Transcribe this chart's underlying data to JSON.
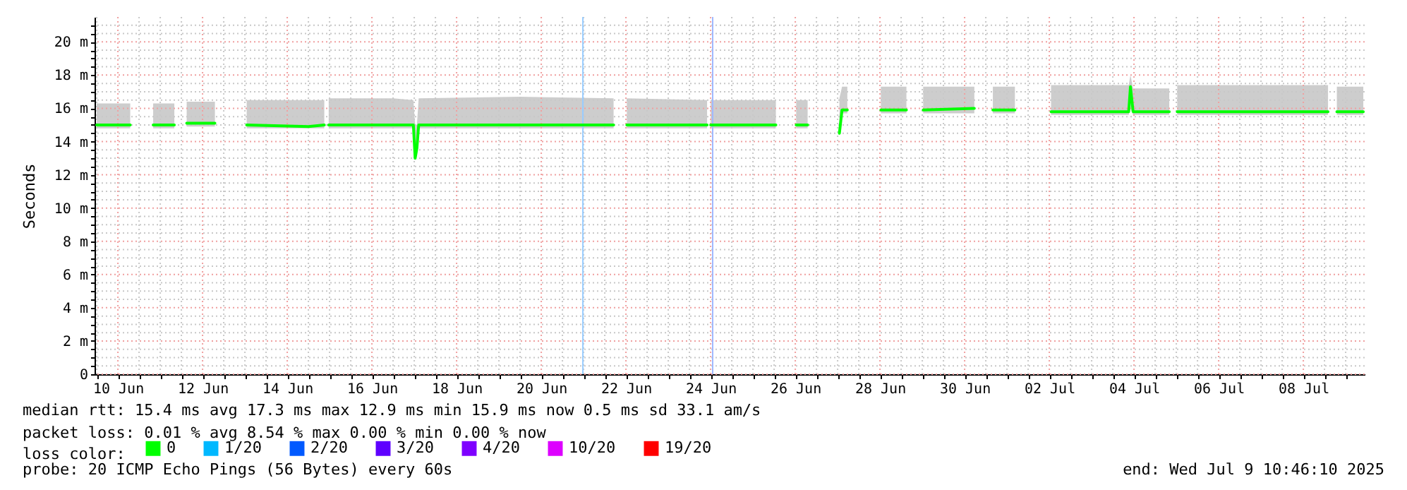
{
  "chart_data": {
    "type": "line",
    "ylabel": "Seconds",
    "legend_title": "loss color:",
    "legend": "bottom",
    "grid": true,
    "marker": "none",
    "line_style": "solid",
    "annotations": [
      "median rtt:  15.4 ms avg  17.3 ms max  12.9 ms min  15.9 ms now  0.5 ms sd  33.1   am/s",
      "packet loss: 0.01 % avg  8.54 % max  0.00 % min  0.00 % now",
      "probe:       20 ICMP Echo Pings (56 Bytes) every 60s",
      "end: Wed Jul  9 10:46:10 2025"
    ],
    "xlim": [
      "2025-06-09T10:46",
      "2025-07-09T10:46"
    ],
    "xticks": [
      {
        "value": "2025-06-09T12:00",
        "label": null
      },
      {
        "value": "2025-06-10",
        "label": "10 Jun"
      },
      {
        "value": "2025-06-10T12:00",
        "label": null
      },
      {
        "value": "2025-06-11",
        "label": null
      },
      {
        "value": "2025-06-11T12:00",
        "label": null
      },
      {
        "value": "2025-06-12",
        "label": "12 Jun"
      },
      {
        "value": "2025-06-12T12:00",
        "label": null
      },
      {
        "value": "2025-06-13",
        "label": null
      },
      {
        "value": "2025-06-13T12:00",
        "label": null
      },
      {
        "value": "2025-06-14",
        "label": "14 Jun"
      },
      {
        "value": "2025-06-14T12:00",
        "label": null
      },
      {
        "value": "2025-06-15",
        "label": null
      },
      {
        "value": "2025-06-15T12:00",
        "label": null
      },
      {
        "value": "2025-06-16",
        "label": "16 Jun"
      },
      {
        "value": "2025-06-16T12:00",
        "label": null
      },
      {
        "value": "2025-06-17",
        "label": null
      },
      {
        "value": "2025-06-17T12:00",
        "label": null
      },
      {
        "value": "2025-06-18",
        "label": "18 Jun"
      },
      {
        "value": "2025-06-18T12:00",
        "label": null
      },
      {
        "value": "2025-06-19",
        "label": null
      },
      {
        "value": "2025-06-19T12:00",
        "label": null
      },
      {
        "value": "2025-06-20",
        "label": "20 Jun"
      },
      {
        "value": "2025-06-20T12:00",
        "label": null
      },
      {
        "value": "2025-06-21",
        "label": null
      },
      {
        "value": "2025-06-21T12:00",
        "label": null
      },
      {
        "value": "2025-06-22",
        "label": "22 Jun"
      },
      {
        "value": "2025-06-22T12:00",
        "label": null
      },
      {
        "value": "2025-06-23",
        "label": null
      },
      {
        "value": "2025-06-23T12:00",
        "label": null
      },
      {
        "value": "2025-06-24",
        "label": "24 Jun"
      },
      {
        "value": "2025-06-24T12:00",
        "label": null
      },
      {
        "value": "2025-06-25",
        "label": null
      },
      {
        "value": "2025-06-25T12:00",
        "label": null
      },
      {
        "value": "2025-06-26",
        "label": "26 Jun"
      },
      {
        "value": "2025-06-26T12:00",
        "label": null
      },
      {
        "value": "2025-06-27",
        "label": null
      },
      {
        "value": "2025-06-27T12:00",
        "label": null
      },
      {
        "value": "2025-06-28",
        "label": "28 Jun"
      },
      {
        "value": "2025-06-28T12:00",
        "label": null
      },
      {
        "value": "2025-06-29",
        "label": null
      },
      {
        "value": "2025-06-29T12:00",
        "label": null
      },
      {
        "value": "2025-06-30",
        "label": "30 Jun"
      },
      {
        "value": "2025-06-30T12:00",
        "label": null
      },
      {
        "value": "2025-07-01",
        "label": null
      },
      {
        "value": "2025-07-01T12:00",
        "label": null
      },
      {
        "value": "2025-07-02",
        "label": "02 Jul"
      },
      {
        "value": "2025-07-02T12:00",
        "label": null
      },
      {
        "value": "2025-07-03",
        "label": null
      },
      {
        "value": "2025-07-03T12:00",
        "label": null
      },
      {
        "value": "2025-07-04",
        "label": "04 Jul"
      },
      {
        "value": "2025-07-04T12:00",
        "label": null
      },
      {
        "value": "2025-07-05",
        "label": null
      },
      {
        "value": "2025-07-05T12:00",
        "label": null
      },
      {
        "value": "2025-07-06",
        "label": "06 Jul"
      },
      {
        "value": "2025-07-06T12:00",
        "label": null
      },
      {
        "value": "2025-07-07",
        "label": null
      },
      {
        "value": "2025-07-07T12:00",
        "label": null
      },
      {
        "value": "2025-07-08",
        "label": "08 Jul"
      },
      {
        "value": "2025-07-08T12:00",
        "label": null
      },
      {
        "value": "2025-07-09",
        "label": null
      }
    ],
    "ylim": [
      0,
      21.5
    ],
    "yticks": [
      0,
      {
        "value": 0.5,
        "label": null
      },
      {
        "value": 1,
        "label": null
      },
      {
        "value": 1.5,
        "label": null
      },
      {
        "value": 2,
        "label": "2 m"
      },
      {
        "value": 2.5,
        "label": null
      },
      {
        "value": 3,
        "label": null
      },
      {
        "value": 3.5,
        "label": null
      },
      {
        "value": 4,
        "label": "4 m"
      },
      {
        "value": 4.5,
        "label": null
      },
      {
        "value": 5,
        "label": null
      },
      {
        "value": 5.5,
        "label": null
      },
      {
        "value": 6,
        "label": "6 m"
      },
      {
        "value": 6.5,
        "label": null
      },
      {
        "value": 7,
        "label": null
      },
      {
        "value": 7.5,
        "label": null
      },
      {
        "value": 8,
        "label": "8 m"
      },
      {
        "value": 8.5,
        "label": null
      },
      {
        "value": 9,
        "label": null
      },
      {
        "value": 9.5,
        "label": null
      },
      {
        "value": 10,
        "label": "10 m"
      },
      {
        "value": 10.5,
        "label": null
      },
      {
        "value": 11,
        "label": null
      },
      {
        "value": 11.5,
        "label": null
      },
      {
        "value": 12,
        "label": "12 m"
      },
      {
        "value": 12.5,
        "label": null
      },
      {
        "value": 13,
        "label": null
      },
      {
        "value": 13.5,
        "label": null
      },
      {
        "value": 14,
        "label": "14 m"
      },
      {
        "value": 14.5,
        "label": null
      },
      {
        "value": 15,
        "label": null
      },
      {
        "value": 15.5,
        "label": null
      },
      {
        "value": 16,
        "label": "16 m"
      },
      {
        "value": 16.5,
        "label": null
      },
      {
        "value": 17,
        "label": null
      },
      {
        "value": 17.5,
        "label": null
      },
      {
        "value": 18,
        "label": "18 m"
      },
      {
        "value": 18.5,
        "label": null
      },
      {
        "value": 19,
        "label": null
      },
      {
        "value": 19.5,
        "label": null
      },
      {
        "value": 20,
        "label": "20 m"
      },
      {
        "value": 20.5,
        "label": null
      },
      {
        "value": 21,
        "label": null
      }
    ],
    "ref_lines": [
      {
        "axis": "x",
        "value": "2025-06-20T23:35",
        "color": "#99ccff"
      },
      {
        "axis": "x",
        "value": "2025-06-24T01:10",
        "color": "#a0b8ff"
      }
    ],
    "x": [
      "2025-06-09T12:00",
      "2025-06-10T07:00",
      "2025-06-10T14:00",
      "2025-06-10T20:00",
      "2025-06-11T08:00",
      "2025-06-11T12:00",
      "2025-06-11T15:00",
      "2025-06-12T07:00",
      "2025-06-12T16:00",
      "2025-06-13T01:00",
      "2025-06-14T12:00",
      "2025-06-14T21:00",
      "2025-06-14T22:00",
      "2025-06-14T23:30",
      "2025-06-16T12:00",
      "2025-06-16T23:30",
      "2025-06-17T00:30",
      "2025-06-17T01:30",
      "2025-06-17T02:30",
      "2025-06-19T12:00",
      "2025-06-21T17:00",
      "2025-06-21T20:00",
      "2025-06-22T00:30",
      "2025-06-23T22:00",
      "2025-06-23T23:00",
      "2025-06-24T00:00",
      "2025-06-25T13:00",
      "2025-06-25T20:00",
      "2025-06-26T00:30",
      "2025-06-26T07:00",
      "2025-06-26T16:00",
      "2025-06-27T01:00",
      "2025-06-27T02:30",
      "2025-06-27T05:30",
      "2025-06-27T14:00",
      "2025-06-28T00:30",
      "2025-06-28T15:00",
      "2025-06-28T20:00",
      "2025-06-29T00:30",
      "2025-06-30T05:30",
      "2025-06-30T10:00",
      "2025-06-30T16:00",
      "2025-07-01T04:30",
      "2025-07-01T12:00",
      "2025-07-02T01:00",
      "2025-07-03T21:00",
      "2025-07-03T22:00",
      "2025-07-03T23:30",
      "2025-07-04T20:00",
      "2025-07-04T22:00",
      "2025-07-05T00:30",
      "2025-07-08T14:00",
      "2025-07-08T17:00",
      "2025-07-08T19:00",
      "2025-07-09T10:00"
    ],
    "series": [
      {
        "name": "0",
        "color": "#00ff00",
        "values": [
          15.0,
          15.0,
          null,
          15.0,
          15.0,
          null,
          15.1,
          15.1,
          null,
          15.0,
          14.9,
          15.0,
          null,
          15.0,
          15.0,
          15.0,
          13.0,
          13.6,
          15.0,
          15.0,
          15.0,
          null,
          15.0,
          15.0,
          null,
          15.0,
          15.0,
          null,
          15.0,
          15.0,
          null,
          14.5,
          15.9,
          15.9,
          null,
          15.9,
          15.9,
          null,
          15.9,
          16.0,
          null,
          15.9,
          15.9,
          null,
          15.8,
          15.8,
          17.3,
          15.8,
          15.8,
          null,
          15.8,
          15.8,
          null,
          15.8,
          15.8
        ],
        "lower": [
          14.8,
          14.8,
          null,
          14.8,
          14.8,
          null,
          14.9,
          14.9,
          null,
          14.8,
          14.8,
          14.8,
          null,
          14.8,
          14.8,
          14.8,
          13.0,
          13.6,
          14.8,
          14.8,
          14.8,
          null,
          14.8,
          14.8,
          null,
          14.8,
          14.8,
          null,
          14.8,
          14.8,
          null,
          14.5,
          15.7,
          15.7,
          null,
          15.7,
          15.7,
          null,
          15.7,
          15.7,
          null,
          15.7,
          15.7,
          null,
          15.6,
          15.6,
          16.0,
          15.6,
          15.6,
          null,
          15.6,
          15.6,
          null,
          15.6,
          15.6
        ],
        "upper": [
          16.3,
          16.3,
          null,
          16.3,
          16.3,
          null,
          16.4,
          16.4,
          null,
          16.5,
          16.5,
          16.5,
          null,
          16.6,
          16.6,
          16.5,
          15.0,
          15.0,
          16.6,
          16.7,
          16.6,
          null,
          16.6,
          16.5,
          null,
          16.5,
          16.5,
          null,
          16.5,
          16.5,
          null,
          16.6,
          17.3,
          17.3,
          null,
          17.3,
          17.3,
          null,
          17.3,
          17.3,
          null,
          17.3,
          17.3,
          null,
          17.4,
          17.4,
          18.0,
          17.2,
          17.2,
          null,
          17.4,
          17.4,
          null,
          17.3,
          17.3
        ]
      },
      {
        "name": "1/20",
        "color": "#00b8ff",
        "values": [
          null,
          null,
          null,
          null,
          null,
          null,
          null,
          null,
          null,
          null,
          null,
          null,
          null,
          null,
          null,
          null,
          null,
          null,
          null,
          null,
          null,
          null,
          null,
          null,
          null,
          null,
          null,
          null,
          null,
          null,
          null,
          null,
          null,
          null,
          null,
          null,
          null,
          null,
          null,
          null,
          null,
          null,
          null,
          null,
          null,
          null,
          null,
          null,
          null,
          null,
          null,
          null,
          null,
          null,
          null
        ]
      },
      {
        "name": "2/20",
        "color": "#0059ff",
        "values": [
          null,
          null,
          null,
          null,
          null,
          null,
          null,
          null,
          null,
          null,
          null,
          null,
          null,
          null,
          null,
          null,
          null,
          null,
          null,
          null,
          null,
          null,
          null,
          null,
          null,
          null,
          null,
          null,
          null,
          null,
          null,
          null,
          null,
          null,
          null,
          null,
          null,
          null,
          null,
          null,
          null,
          null,
          null,
          null,
          null,
          null,
          null,
          null,
          null,
          null,
          null,
          null,
          null,
          null,
          null
        ]
      },
      {
        "name": "3/20",
        "color": "#5e00ff",
        "values": [
          null,
          null,
          null,
          null,
          null,
          null,
          null,
          null,
          null,
          null,
          null,
          null,
          null,
          null,
          null,
          null,
          null,
          null,
          null,
          null,
          null,
          null,
          null,
          null,
          null,
          null,
          null,
          null,
          null,
          null,
          null,
          null,
          null,
          null,
          null,
          null,
          null,
          null,
          null,
          null,
          null,
          null,
          null,
          null,
          null,
          null,
          null,
          null,
          null,
          null,
          null,
          null,
          null,
          null,
          null
        ]
      },
      {
        "name": "4/20",
        "color": "#7e00ff",
        "values": [
          null,
          null,
          null,
          null,
          null,
          null,
          null,
          null,
          null,
          null,
          null,
          null,
          null,
          null,
          null,
          null,
          null,
          null,
          null,
          null,
          null,
          null,
          null,
          null,
          null,
          null,
          null,
          null,
          null,
          null,
          null,
          null,
          null,
          null,
          null,
          null,
          null,
          null,
          null,
          null,
          null,
          null,
          null,
          null,
          null,
          null,
          null,
          null,
          null,
          null,
          null,
          null,
          null,
          null,
          null
        ]
      },
      {
        "name": "10/20",
        "color": "#dd00ff",
        "values": [
          null,
          null,
          null,
          null,
          null,
          null,
          null,
          null,
          null,
          null,
          null,
          null,
          null,
          null,
          null,
          null,
          null,
          null,
          null,
          null,
          null,
          null,
          null,
          null,
          null,
          null,
          null,
          null,
          null,
          null,
          null,
          null,
          null,
          null,
          null,
          null,
          null,
          null,
          null,
          null,
          null,
          null,
          null,
          null,
          null,
          null,
          null,
          null,
          null,
          null,
          null,
          null,
          null,
          null,
          null
        ]
      },
      {
        "name": "19/20",
        "color": "#ff0000",
        "values": [
          null,
          null,
          null,
          null,
          null,
          null,
          null,
          null,
          null,
          null,
          null,
          null,
          null,
          null,
          null,
          null,
          null,
          null,
          null,
          null,
          null,
          null,
          null,
          null,
          null,
          null,
          null,
          null,
          null,
          null,
          null,
          null,
          null,
          null,
          null,
          null,
          null,
          null,
          null,
          null,
          null,
          null,
          null,
          null,
          null,
          null,
          null,
          null,
          null,
          null,
          null,
          null,
          null,
          null,
          null
        ]
      }
    ]
  }
}
